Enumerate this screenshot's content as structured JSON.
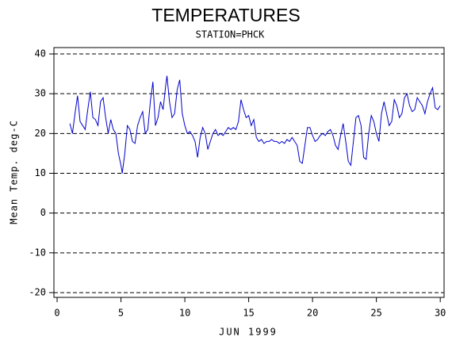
{
  "chart_data": {
    "type": "line",
    "title": "TEMPERATURES",
    "subtitle": "STATION=PHCK",
    "x_label": "JUN 1999",
    "y_label": "Mean Temp. deg-C",
    "xlim": [
      -0.25,
      30.3
    ],
    "ylim": [
      -21.2,
      41.6
    ],
    "xticks": [
      0,
      5,
      10,
      15,
      20,
      25,
      30
    ],
    "yticks": [
      -20,
      -10,
      0,
      10,
      20,
      30,
      40
    ],
    "grid": true,
    "series": [
      {
        "color": "#0000cc",
        "x": [
          1.0,
          1.2,
          1.4,
          1.6,
          1.8,
          2.0,
          2.2,
          2.4,
          2.6,
          2.8,
          3.0,
          3.2,
          3.4,
          3.6,
          3.8,
          4.0,
          4.2,
          4.4,
          4.6,
          4.8,
          5.0,
          5.1,
          5.3,
          5.5,
          5.7,
          5.9,
          6.1,
          6.3,
          6.5,
          6.7,
          6.9,
          7.1,
          7.3,
          7.5,
          7.7,
          7.9,
          8.1,
          8.3,
          8.5,
          8.6,
          8.8,
          9.0,
          9.2,
          9.4,
          9.6,
          9.8,
          10.0,
          10.2,
          10.4,
          10.6,
          10.8,
          11.0,
          11.2,
          11.4,
          11.6,
          11.8,
          12.0,
          12.2,
          12.4,
          12.6,
          12.8,
          13.0,
          13.2,
          13.4,
          13.6,
          13.8,
          14.0,
          14.2,
          14.4,
          14.6,
          14.8,
          15.0,
          15.2,
          15.4,
          15.6,
          15.8,
          16.0,
          16.2,
          16.4,
          16.6,
          16.8,
          17.0,
          17.2,
          17.4,
          17.6,
          17.8,
          18.0,
          18.2,
          18.4,
          18.6,
          18.8,
          19.0,
          19.2,
          19.4,
          19.6,
          19.8,
          20.0,
          20.2,
          20.4,
          20.6,
          20.8,
          21.0,
          21.2,
          21.4,
          21.6,
          21.8,
          22.0,
          22.2,
          22.4,
          22.6,
          22.8,
          23.0,
          23.2,
          23.4,
          23.6,
          23.8,
          24.0,
          24.2,
          24.4,
          24.6,
          24.8,
          25.0,
          25.2,
          25.4,
          25.6,
          25.8,
          26.0,
          26.2,
          26.4,
          26.6,
          26.8,
          27.0,
          27.2,
          27.4,
          27.6,
          27.8,
          28.0,
          28.2,
          28.4,
          28.6,
          28.8,
          29.0,
          29.2,
          29.4,
          29.6,
          29.8,
          30.0
        ],
        "values": [
          22.5,
          20,
          25,
          29.5,
          23,
          22,
          21,
          26,
          30.5,
          24,
          23.5,
          22,
          28,
          29,
          24,
          20,
          23.5,
          21,
          20,
          15,
          12,
          10,
          15,
          22,
          21,
          18,
          17.5,
          22,
          24,
          25.5,
          20,
          21,
          28,
          33,
          22,
          24,
          28,
          26,
          32,
          34.5,
          28,
          24,
          25,
          31,
          33.5,
          25,
          22,
          20,
          20.5,
          19.5,
          18,
          14,
          19,
          21.5,
          20,
          16,
          18,
          20,
          21,
          19.5,
          20,
          19.5,
          20.5,
          21.5,
          21,
          21.5,
          21,
          23,
          28.5,
          26,
          24,
          24.5,
          22,
          23.5,
          19,
          18,
          18.5,
          17.5,
          18,
          18,
          18.5,
          18,
          18,
          17.5,
          18,
          17.5,
          18.5,
          18,
          19,
          18,
          17,
          13,
          12.5,
          17,
          21.5,
          21.5,
          19.5,
          18,
          18.5,
          19.5,
          20,
          19.5,
          20.5,
          21,
          19.5,
          17,
          16,
          19.5,
          22.5,
          18,
          13,
          12,
          18,
          24,
          24.5,
          22,
          14,
          13.5,
          20,
          24.5,
          23,
          20,
          18,
          25,
          28,
          25,
          22,
          23,
          28.5,
          27,
          24,
          25,
          29,
          30,
          27,
          25.5,
          26,
          29,
          28,
          27,
          25,
          28,
          30,
          31.5,
          26.5,
          26,
          27
        ]
      }
    ]
  }
}
